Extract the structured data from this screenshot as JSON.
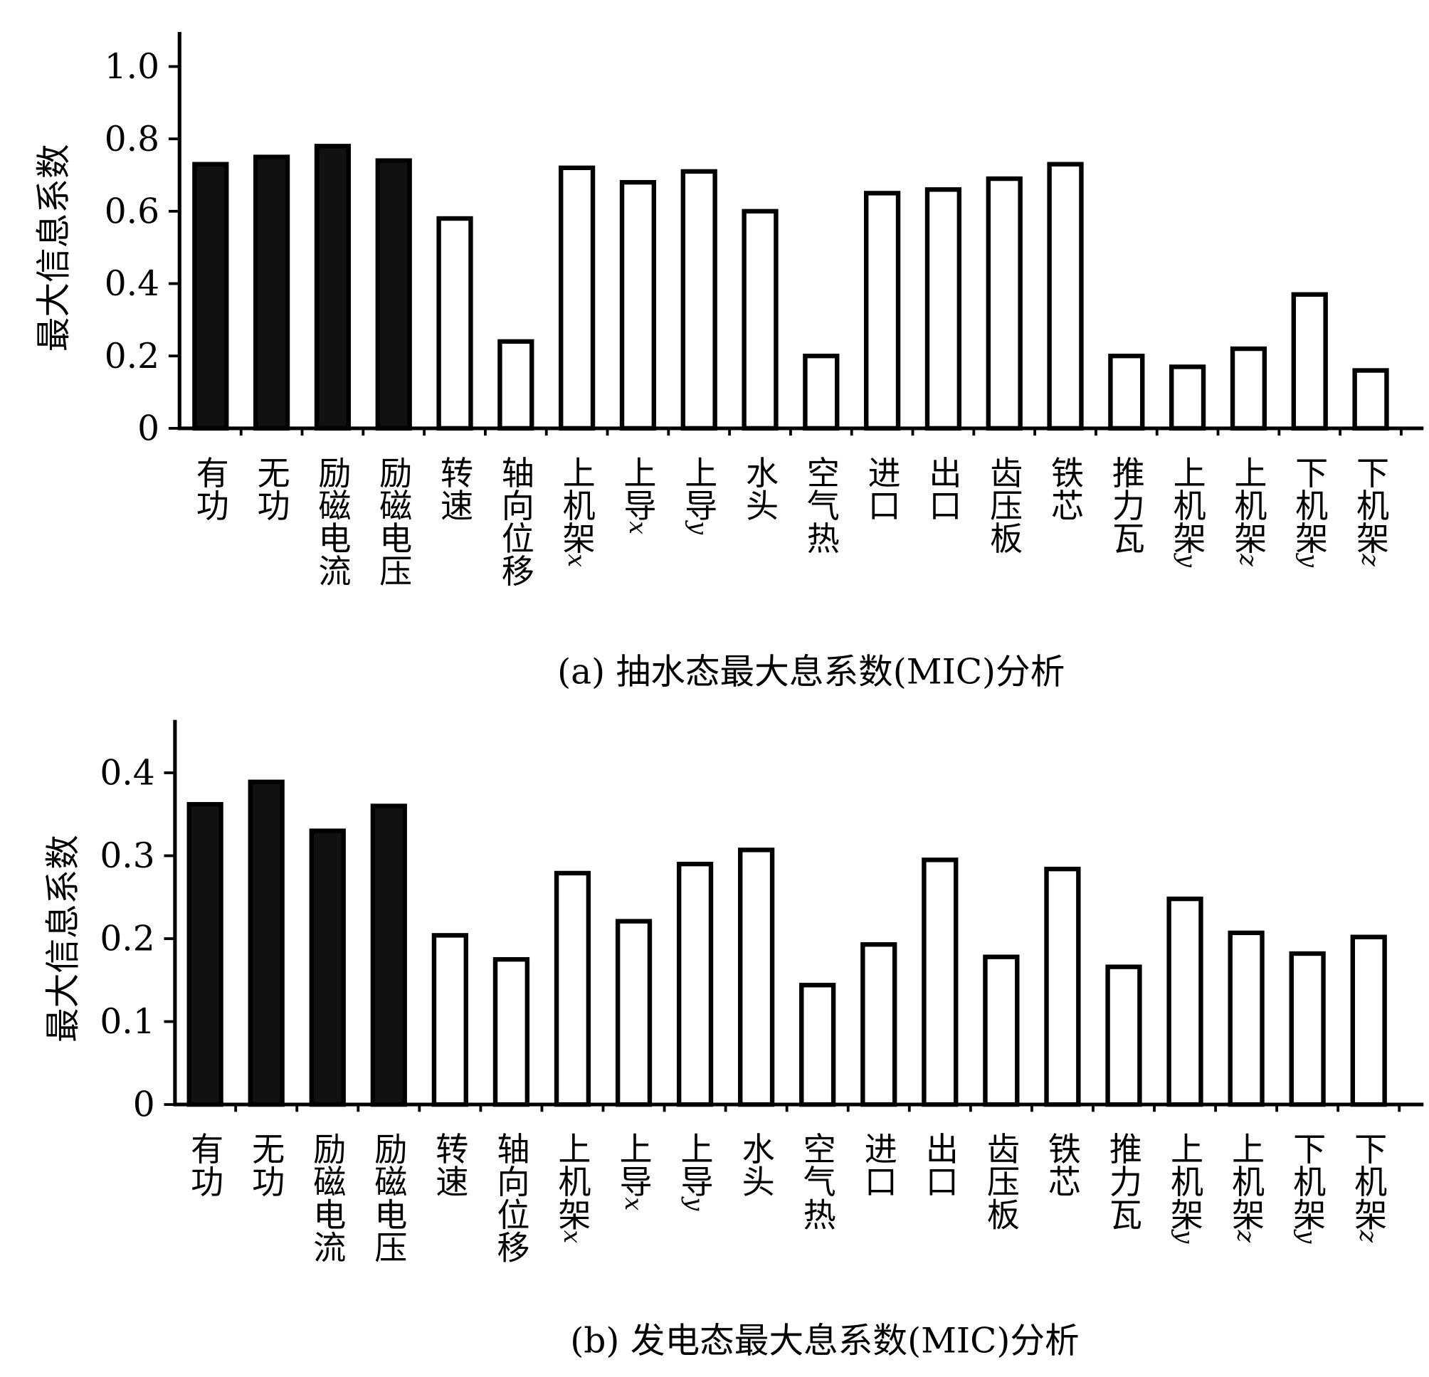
{
  "chart_data": [
    {
      "type": "bar",
      "title": "(a) 抽水态最大息系数(MIC)分析",
      "ylabel": "最大信息系数",
      "xlabel": "",
      "ylim": [
        0,
        1.08
      ],
      "yticks": [
        0,
        0.2,
        0.4,
        0.6,
        0.8,
        1.0
      ],
      "ytick_labels": [
        "0",
        "0.2",
        "0.4",
        "0.6",
        "0.8",
        "1.0"
      ],
      "grid": false,
      "categories": [
        "有功",
        "无功",
        "励磁电流",
        "励磁电压",
        "转速",
        "轴向位移",
        "上机架x",
        "上导x",
        "上导y",
        "水头",
        "空气热",
        "进口",
        "出口",
        "齿压板",
        "铁芯",
        "推力瓦",
        "上机架y",
        "上机架z",
        "下机架y",
        "下机架z"
      ],
      "values": [
        0.73,
        0.75,
        0.78,
        0.74,
        0.58,
        0.24,
        0.72,
        0.68,
        0.71,
        0.6,
        0.2,
        0.65,
        0.66,
        0.69,
        0.73,
        0.2,
        0.17,
        0.22,
        0.37,
        0.16
      ],
      "filled_count": 4,
      "colors": {
        "filled": "#111111",
        "outline": "#000000"
      }
    },
    {
      "type": "bar",
      "title": "(b) 发电态最大息系数(MIC)分析",
      "ylabel": "最大信息系数",
      "xlabel": "",
      "ylim": [
        0,
        0.464
      ],
      "yticks": [
        0,
        0.1,
        0.2,
        0.3,
        0.4
      ],
      "ytick_labels": [
        "0",
        "0.1",
        "0.2",
        "0.3",
        "0.4"
      ],
      "grid": false,
      "categories": [
        "有功",
        "无功",
        "励磁电流",
        "励磁电压",
        "转速",
        "轴向位移",
        "上机架x",
        "上导x",
        "上导y",
        "水头",
        "空气热",
        "进口",
        "出口",
        "齿压板",
        "铁芯",
        "推力瓦",
        "上机架y",
        "上机架z",
        "下机架y",
        "下机架z"
      ],
      "values": [
        0.362,
        0.389,
        0.33,
        0.36,
        0.204,
        0.175,
        0.279,
        0.221,
        0.29,
        0.307,
        0.144,
        0.193,
        0.295,
        0.178,
        0.284,
        0.166,
        0.248,
        0.207,
        0.182,
        0.202
      ],
      "filled_count": 4,
      "colors": {
        "filled": "#111111",
        "outline": "#000000"
      }
    }
  ]
}
